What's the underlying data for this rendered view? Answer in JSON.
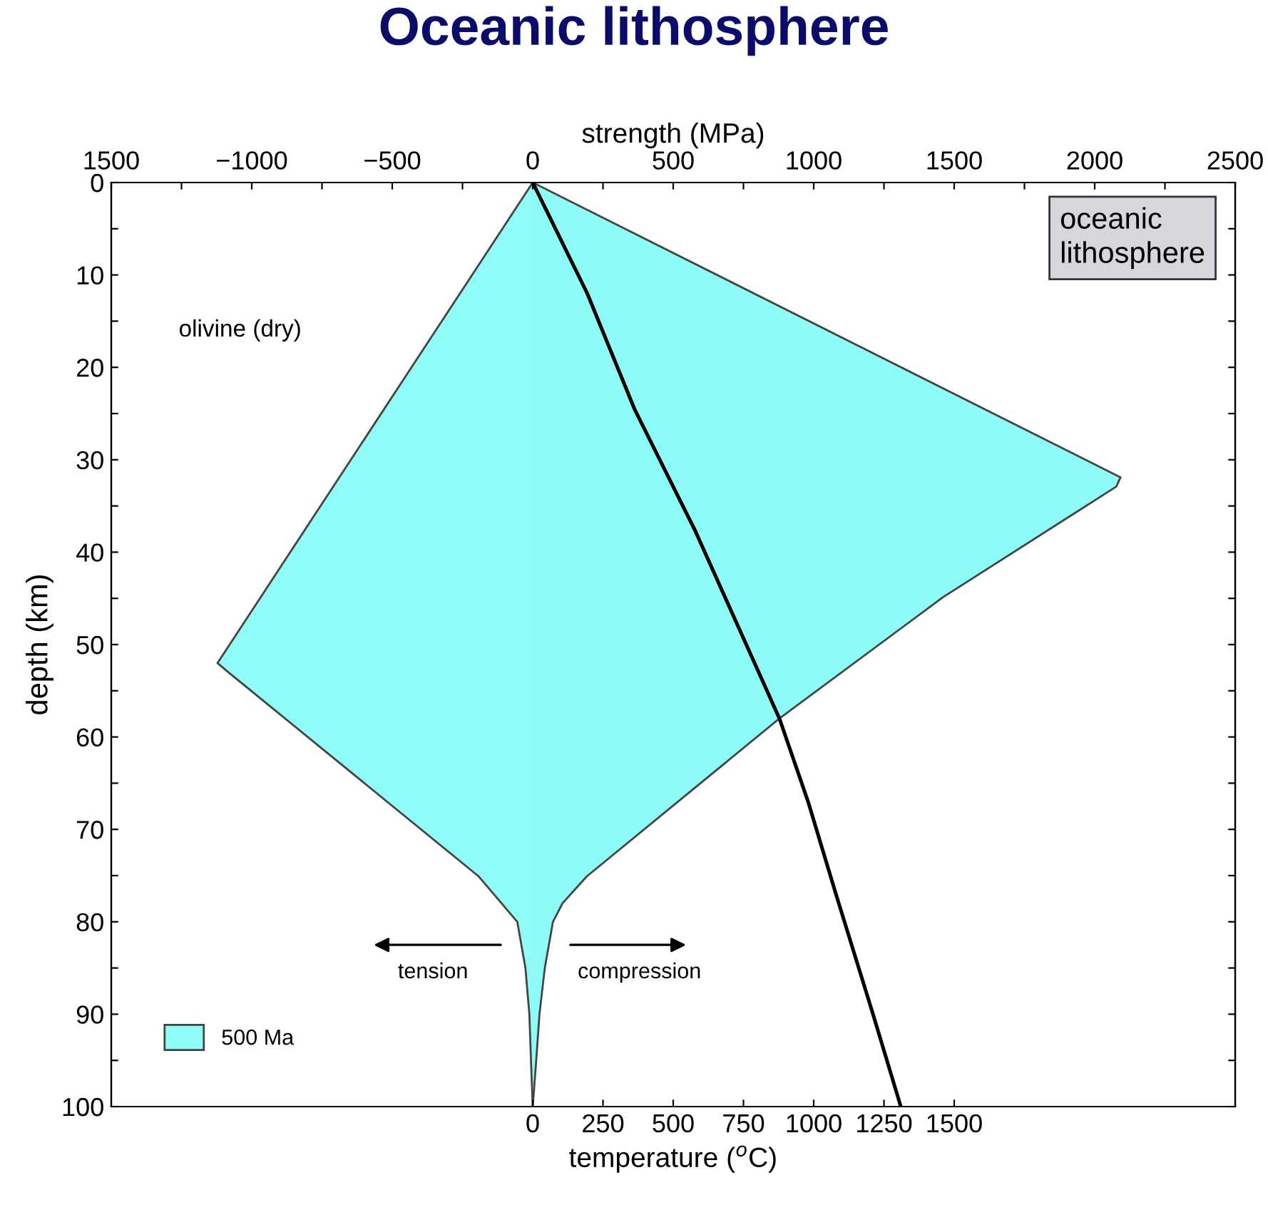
{
  "chart_data": {
    "type": "area",
    "orientation": "horizontal",
    "title": "Oceanic lithosphere",
    "x2label": "strength (MPa)",
    "xlabel": "temperature ($^{o}$C)",
    "ylabel": "depth (km)",
    "series": [
      {
        "name": "500 Ma",
        "axis": "x2",
        "color": "#8ffcf8",
        "x": [
          0,
          52,
          52.9,
          75.1,
          80,
          85,
          90,
          96,
          100
        ],
        "values": [
          0,
          -1122,
          -1087,
          -192,
          -55,
          -26,
          -12,
          -5,
          0
        ]
      },
      {
        "axis": "x2",
        "color": "#8efbf7",
        "x": [
          0,
          31.9,
          32.9,
          44.9,
          58,
          75.1,
          78,
          80,
          85,
          90,
          96,
          100
        ],
        "values": [
          0,
          2092,
          2077,
          1459,
          878,
          192,
          106,
          72,
          43,
          24,
          10,
          0
        ]
      },
      {
        "type": "line",
        "color": "#000000",
        "x": [
          0,
          12,
          24.5,
          37.6,
          58,
          67,
          76.8,
          89.8,
          100
        ],
        "values": [
          0,
          194,
          362,
          577,
          878,
          980,
          1077,
          1209,
          1310
        ]
      }
    ],
    "xlim": [
      -1500,
      2500
    ],
    "xticks": [
      0,
      250,
      500,
      750,
      1000,
      1250,
      1500
    ],
    "x2lim": [
      -1500,
      2500
    ],
    "x2ticks": [
      {
        "value": -1500,
        "label": "1500"
      },
      {
        "value": -1250,
        "label": null
      },
      -1000,
      {
        "value": -750,
        "label": null
      },
      -500,
      {
        "value": -250,
        "label": null
      },
      0,
      {
        "value": 250,
        "label": null
      },
      500,
      {
        "value": 750,
        "label": null
      },
      1000,
      {
        "value": 1250,
        "label": null
      },
      1500,
      {
        "value": 1750,
        "label": null
      },
      2000,
      {
        "value": 2250,
        "label": null
      },
      2500
    ],
    "ylim": [
      100,
      0
    ],
    "yticks": [
      0,
      {
        "value": 5,
        "label": null
      },
      10,
      {
        "value": 15,
        "label": null
      },
      20,
      {
        "value": 25,
        "label": null
      },
      30,
      {
        "value": 35,
        "label": null
      },
      40,
      {
        "value": 45,
        "label": null
      },
      50,
      {
        "value": 55,
        "label": null
      },
      60,
      {
        "value": 65,
        "label": null
      },
      70,
      {
        "value": 75,
        "label": null
      },
      80,
      {
        "value": 85,
        "label": null
      },
      90,
      {
        "value": 95,
        "label": null
      },
      100
    ],
    "annotations": [
      "olivine (dry)",
      "tension",
      "compression",
      "oceanic\nlithosphere"
    ],
    "legend": "bottom left",
    "grid": false
  }
}
